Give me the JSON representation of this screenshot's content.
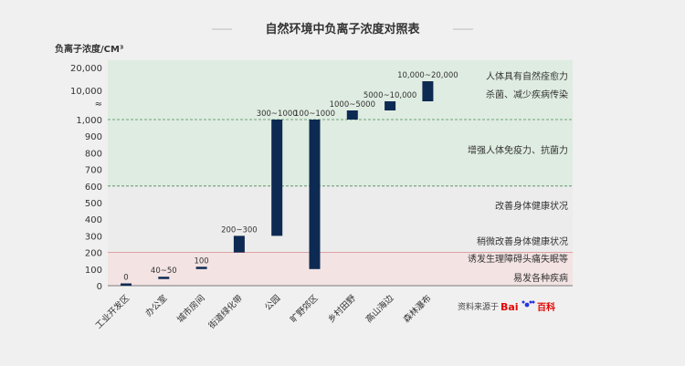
{
  "chart_data": {
    "type": "bar",
    "title": "自然环境中负离子浓度对照表",
    "ylabel": "负离子浓度/CM³",
    "y_ticks": [
      "0",
      "100",
      "200",
      "300",
      "400",
      "500",
      "600",
      "700",
      "800",
      "900",
      "1,000",
      "≈",
      "10,000",
      "20,000"
    ],
    "categories": [
      "工业开发区",
      "办公室",
      "城市房间",
      "街道绿化带",
      "公园",
      "旷野郊区",
      "乡村田野",
      "高山海边",
      "森林瀑布"
    ],
    "ranges": [
      {
        "low": 0,
        "high": 0
      },
      {
        "low": 40,
        "high": 50
      },
      {
        "low": 100,
        "high": 100
      },
      {
        "low": 200,
        "high": 300
      },
      {
        "low": 300,
        "high": 1000
      },
      {
        "low": 100,
        "high": 1000
      },
      {
        "low": 1000,
        "high": 5000
      },
      {
        "low": 5000,
        "high": 10000
      },
      {
        "low": 10000,
        "high": 20000
      }
    ],
    "value_labels": [
      "0",
      "40~50",
      "100",
      "200~300",
      "300~1000",
      "100~1000",
      "1000~5000",
      "5000~10,000",
      "10,000~20,000"
    ],
    "zones": [
      {
        "from": 0,
        "to": 100,
        "label": "易发各种疾病",
        "color": "#f3e3e3"
      },
      {
        "from": 100,
        "to": 200,
        "label": "诱发生理障碍头痛失眠等",
        "color": "#f3e3e3"
      },
      {
        "from": 200,
        "to": 600,
        "label": "稍微改善身体健康状况",
        "color": "#ececec"
      },
      {
        "from": 600,
        "to": 1000,
        "label": "改善身体健康状况",
        "color": "#dfece1"
      },
      {
        "from": 1000,
        "to": 5000,
        "label": "增强人体免疫力、抗菌力",
        "color": "#dfece1"
      },
      {
        "from": 5000,
        "to": 10000,
        "label": "杀菌、减少疾病传染",
        "color": "#dfece1"
      },
      {
        "from": 10000,
        "to": 20000,
        "label": "人体具有自然痊愈力",
        "color": "#dfece1"
      }
    ],
    "bar_color": "#0d2a52",
    "source_label": "资料来源于",
    "source_logo_text": "Bai",
    "source_logo_cn": "百科"
  }
}
